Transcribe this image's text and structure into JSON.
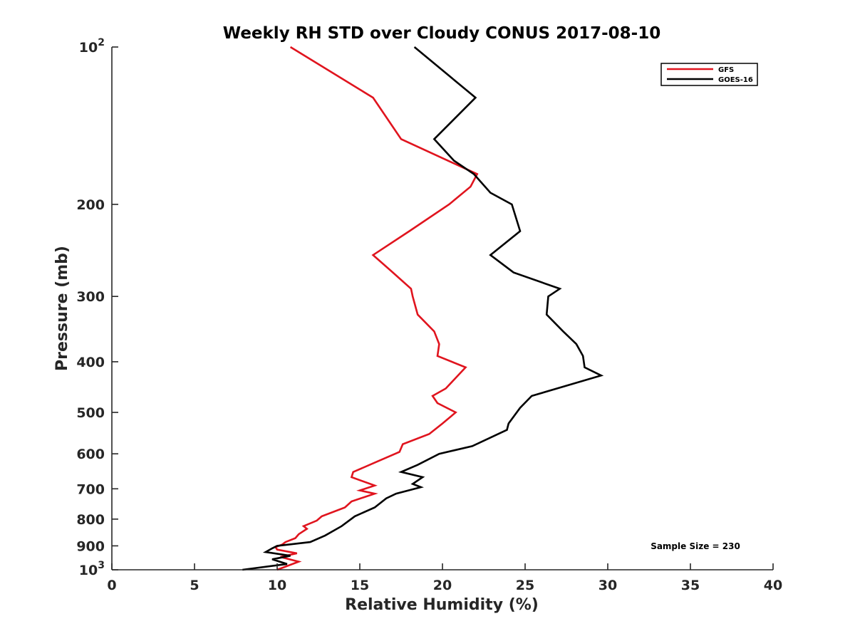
{
  "chart_data": {
    "type": "line",
    "title": "Weekly RH STD over Cloudy CONUS 2017-08-10",
    "xlabel": "Relative Humidity (%)",
    "ylabel": "Pressure (mb)",
    "xlim": [
      0,
      40
    ],
    "ylim": [
      100,
      1000
    ],
    "y_scale": "log",
    "y_reversed": true,
    "grid": false,
    "legend_position": "top-right",
    "xticks": [
      0,
      5,
      10,
      15,
      20,
      25,
      30,
      35,
      40
    ],
    "xtick_labels": [
      "0",
      "5",
      "10",
      "15",
      "20",
      "25",
      "30",
      "35",
      "40"
    ],
    "yticks": [
      100,
      200,
      300,
      400,
      500,
      600,
      700,
      800,
      900,
      1000
    ],
    "ytick_labels": [
      {
        "base": "10",
        "exp": "2"
      },
      {
        "base": "200",
        "exp": ""
      },
      {
        "base": "300",
        "exp": ""
      },
      {
        "base": "400",
        "exp": ""
      },
      {
        "base": "500",
        "exp": ""
      },
      {
        "base": "600",
        "exp": ""
      },
      {
        "base": "700",
        "exp": ""
      },
      {
        "base": "800",
        "exp": ""
      },
      {
        "base": "900",
        "exp": ""
      },
      {
        "base": "10",
        "exp": "3"
      }
    ],
    "annotation": "Sample Size = 230",
    "series": [
      {
        "name": "GFS",
        "color": "#e0141e",
        "points": [
          [
            10.8,
            100
          ],
          [
            15.8,
            125
          ],
          [
            17.5,
            150
          ],
          [
            22.1,
            175
          ],
          [
            21.7,
            185
          ],
          [
            20.4,
            200
          ],
          [
            18.0,
            225
          ],
          [
            15.8,
            250
          ],
          [
            17.0,
            270
          ],
          [
            18.1,
            290
          ],
          [
            18.2,
            300
          ],
          [
            18.5,
            325
          ],
          [
            19.5,
            350
          ],
          [
            19.8,
            370
          ],
          [
            19.7,
            390
          ],
          [
            21.4,
            410
          ],
          [
            20.2,
            450
          ],
          [
            19.4,
            465
          ],
          [
            19.7,
            480
          ],
          [
            20.8,
            500
          ],
          [
            20.0,
            525
          ],
          [
            19.2,
            550
          ],
          [
            17.6,
            575
          ],
          [
            17.4,
            595
          ],
          [
            16.1,
            620
          ],
          [
            14.6,
            650
          ],
          [
            14.5,
            665
          ],
          [
            15.9,
            690
          ],
          [
            15.0,
            705
          ],
          [
            15.9,
            715
          ],
          [
            14.5,
            740
          ],
          [
            14.1,
            760
          ],
          [
            12.7,
            790
          ],
          [
            12.4,
            805
          ],
          [
            11.6,
            825
          ],
          [
            11.8,
            835
          ],
          [
            11.3,
            855
          ],
          [
            11.1,
            870
          ],
          [
            10.5,
            885
          ],
          [
            10.3,
            895
          ],
          [
            9.9,
            905
          ],
          [
            10.0,
            915
          ],
          [
            11.2,
            930
          ],
          [
            10.2,
            945
          ],
          [
            11.3,
            965
          ],
          [
            10.0,
            1000
          ]
        ]
      },
      {
        "name": "GOES-16",
        "color": "#000000",
        "points": [
          [
            18.3,
            100
          ],
          [
            22.0,
            125
          ],
          [
            19.5,
            150
          ],
          [
            20.7,
            165
          ],
          [
            21.9,
            175
          ],
          [
            22.9,
            190
          ],
          [
            24.2,
            200
          ],
          [
            24.7,
            225
          ],
          [
            22.9,
            250
          ],
          [
            24.3,
            270
          ],
          [
            27.1,
            290
          ],
          [
            26.4,
            300
          ],
          [
            26.3,
            325
          ],
          [
            27.3,
            350
          ],
          [
            28.1,
            370
          ],
          [
            28.5,
            390
          ],
          [
            28.6,
            410
          ],
          [
            29.6,
            425
          ],
          [
            25.4,
            465
          ],
          [
            24.7,
            490
          ],
          [
            24.0,
            525
          ],
          [
            23.9,
            540
          ],
          [
            21.8,
            580
          ],
          [
            19.8,
            600
          ],
          [
            18.5,
            630
          ],
          [
            17.5,
            650
          ],
          [
            18.8,
            665
          ],
          [
            18.2,
            685
          ],
          [
            18.7,
            695
          ],
          [
            17.2,
            715
          ],
          [
            16.6,
            730
          ],
          [
            15.9,
            760
          ],
          [
            14.7,
            790
          ],
          [
            13.9,
            825
          ],
          [
            12.9,
            860
          ],
          [
            12.0,
            885
          ],
          [
            10.0,
            900
          ],
          [
            9.7,
            910
          ],
          [
            9.3,
            925
          ],
          [
            10.8,
            940
          ],
          [
            9.7,
            955
          ],
          [
            10.6,
            975
          ],
          [
            7.9,
            1000
          ]
        ]
      }
    ]
  }
}
